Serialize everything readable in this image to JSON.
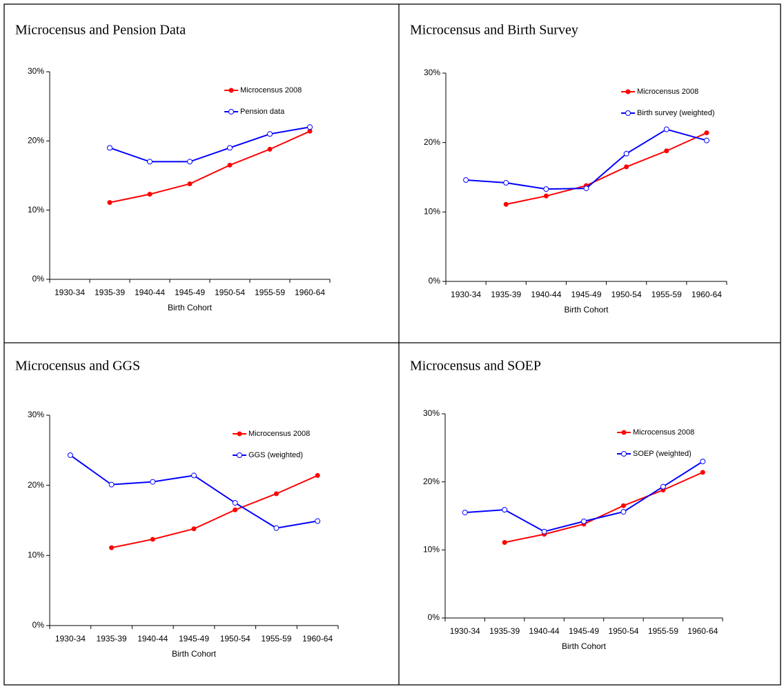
{
  "chart_data": [
    {
      "type": "line",
      "title": "Microcensus and Pension Data",
      "x_label": "Birth Cohort",
      "categories": [
        "1930-34",
        "1935-39",
        "1940-44",
        "1945-49",
        "1950-54",
        "1955-59",
        "1960-64"
      ],
      "ylim": [
        0,
        30
      ],
      "yticks": [
        {
          "value": 0,
          "label": "0%"
        },
        {
          "value": 10,
          "label": "10%"
        },
        {
          "value": 20,
          "label": "20%"
        },
        {
          "value": 30,
          "label": "30%"
        }
      ],
      "series": [
        {
          "name": "Microcensus 2008",
          "color": "#ff0000",
          "marker": "filled",
          "values": [
            null,
            11.1,
            12.3,
            13.8,
            16.5,
            18.8,
            21.4
          ]
        },
        {
          "name": "Pension data",
          "color": "#0000ff",
          "marker": "open",
          "values": [
            null,
            19.0,
            17.0,
            17.0,
            19.0,
            21.0,
            22.0
          ]
        }
      ]
    },
    {
      "type": "line",
      "title": "Microcensus and Birth Survey",
      "x_label": "Birth Cohort",
      "categories": [
        "1930-34",
        "1935-39",
        "1940-44",
        "1945-49",
        "1950-54",
        "1955-59",
        "1960-64"
      ],
      "ylim": [
        0,
        30
      ],
      "yticks": [
        {
          "value": 0,
          "label": "0%"
        },
        {
          "value": 10,
          "label": "10%"
        },
        {
          "value": 20,
          "label": "20%"
        },
        {
          "value": 30,
          "label": "30%"
        }
      ],
      "series": [
        {
          "name": "Microcensus 2008",
          "color": "#ff0000",
          "marker": "filled",
          "values": [
            null,
            11.1,
            12.3,
            13.8,
            16.5,
            18.8,
            21.4
          ]
        },
        {
          "name": "Birth survey (weighted)",
          "color": "#0000ff",
          "marker": "open",
          "values": [
            14.6,
            14.2,
            13.3,
            13.4,
            18.4,
            21.9,
            20.3
          ]
        }
      ]
    },
    {
      "type": "line",
      "title": "Microcensus and GGS",
      "x_label": "Birth Cohort",
      "categories": [
        "1930-34",
        "1935-39",
        "1940-44",
        "1945-49",
        "1950-54",
        "1955-59",
        "1960-64"
      ],
      "ylim": [
        0,
        30
      ],
      "yticks": [
        {
          "value": 0,
          "label": "0%"
        },
        {
          "value": 10,
          "label": "10%"
        },
        {
          "value": 20,
          "label": "20%"
        },
        {
          "value": 30,
          "label": "30%"
        }
      ],
      "series": [
        {
          "name": "Microcensus 2008",
          "color": "#ff0000",
          "marker": "filled",
          "values": [
            null,
            11.1,
            12.3,
            13.8,
            16.5,
            18.8,
            21.4
          ]
        },
        {
          "name": "GGS (weighted)",
          "color": "#0000ff",
          "marker": "open",
          "values": [
            24.3,
            20.1,
            20.5,
            21.4,
            17.5,
            13.9,
            14.9
          ]
        }
      ]
    },
    {
      "type": "line",
      "title": "Microcensus and SOEP",
      "x_label": "Birth Cohort",
      "categories": [
        "1930-34",
        "1935-39",
        "1940-44",
        "1945-49",
        "1950-54",
        "1955-59",
        "1960-64"
      ],
      "ylim": [
        0,
        30
      ],
      "yticks": [
        {
          "value": 0,
          "label": "0%"
        },
        {
          "value": 10,
          "label": "10%"
        },
        {
          "value": 20,
          "label": "20%"
        },
        {
          "value": 30,
          "label": "30%"
        }
      ],
      "series": [
        {
          "name": "Microcensus 2008",
          "color": "#ff0000",
          "marker": "filled",
          "values": [
            null,
            11.1,
            12.3,
            13.8,
            16.5,
            18.8,
            21.4
          ]
        },
        {
          "name": "SOEP (weighted)",
          "color": "#0000ff",
          "marker": "open",
          "values": [
            15.5,
            15.9,
            12.7,
            14.2,
            15.6,
            19.3,
            23.0
          ]
        }
      ]
    }
  ]
}
